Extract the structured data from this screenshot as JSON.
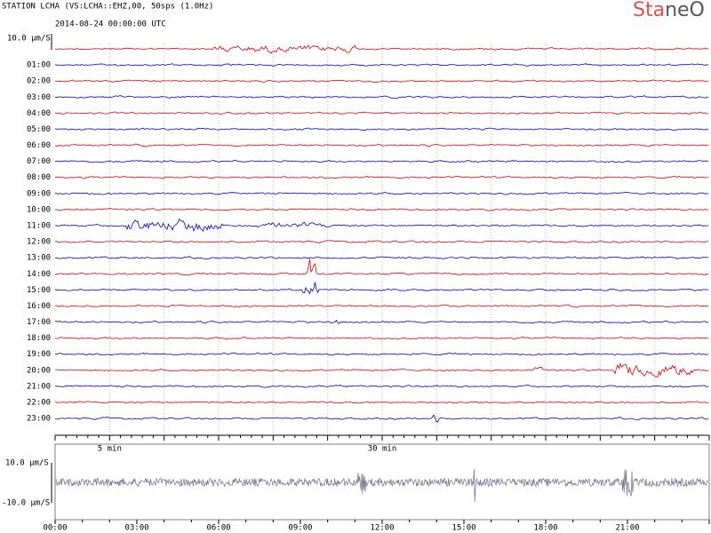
{
  "header": {
    "title": "STATION LCHA (VS:LCHA::EHZ,00, 50sps (1.0Hz)",
    "start": "2014-08-24 00:00:00 UTC",
    "logo_a": "Sta",
    "logo_b": "neO",
    "scale": "10.0 μm/S"
  },
  "helicorder": {
    "rows": [
      "01:00",
      "02:00",
      "03:00",
      "04:00",
      "05:00",
      "06:00",
      "07:00",
      "08:00",
      "09:00",
      "10:00",
      "11:00",
      "12:00",
      "13:00",
      "14:00",
      "15:00",
      "16:00",
      "17:00",
      "18:00",
      "19:00",
      "20:00",
      "21:00",
      "22:00",
      "23:00"
    ],
    "axis_labels": [
      "5 min",
      "30 min"
    ]
  },
  "overview": {
    "top_label": "10.0 μm/S",
    "bottom_label": "-10.0 μm/S",
    "time_labels": [
      "00:00",
      "03:00",
      "06:00",
      "09:00",
      "12:00",
      "15:00",
      "18:00",
      "21:00"
    ]
  }
}
